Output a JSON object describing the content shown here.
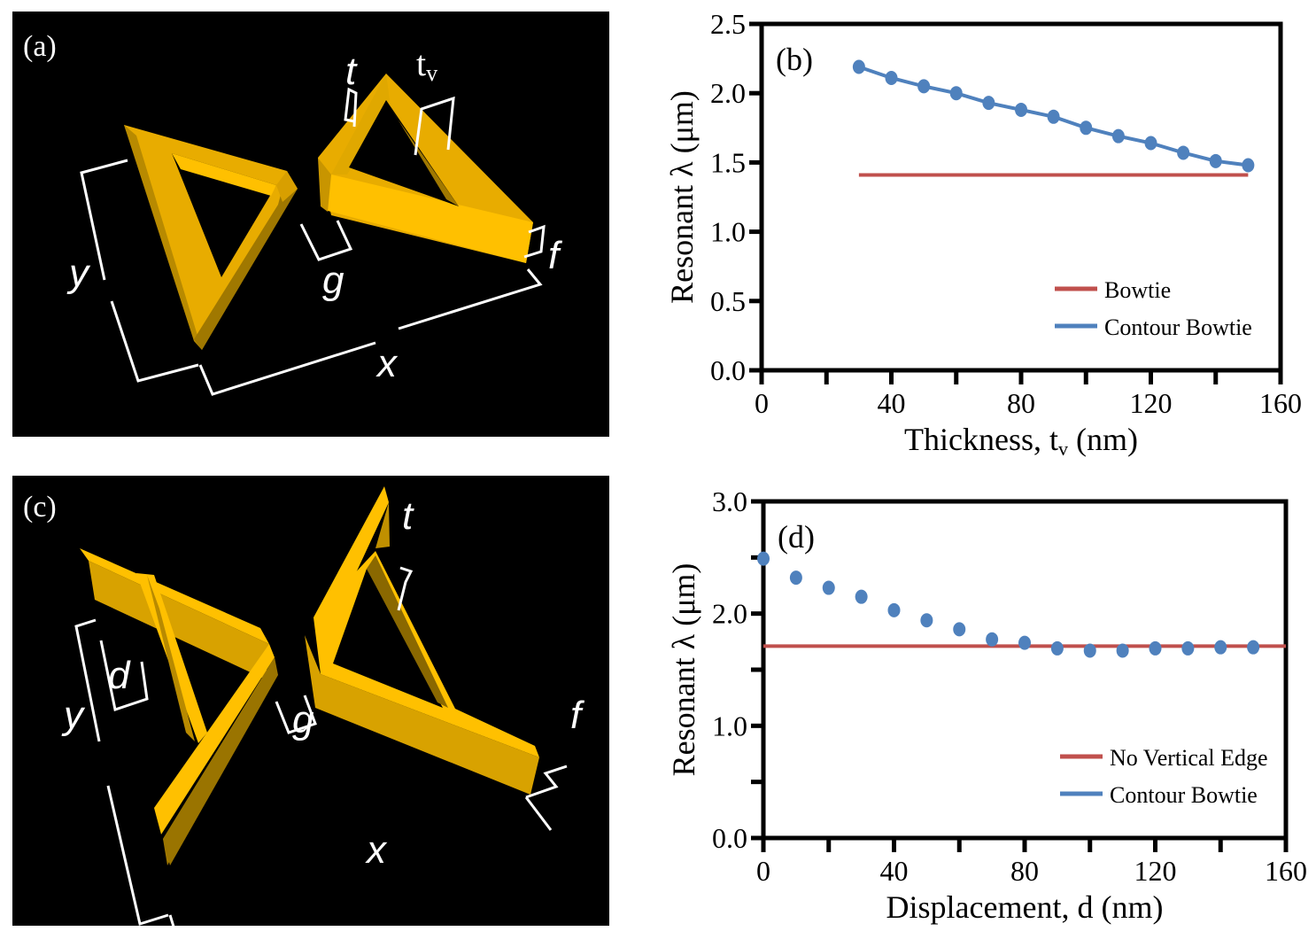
{
  "colors": {
    "red_series": "#C0504D",
    "blue_series": "#4F81BD",
    "gold_light": "#FFC000",
    "gold_mid": "#E0A800",
    "gold_dark": "#A07800"
  },
  "panel_a": {
    "label": "(a)",
    "dimension_labels": {
      "t": "t",
      "tv_main": "t",
      "tv_sub": "v",
      "x": "x",
      "y": "y",
      "g": "g",
      "f": "f"
    }
  },
  "panel_c": {
    "label": "(c)",
    "dimension_labels": {
      "t": "t",
      "x": "x",
      "y": "y",
      "g": "g",
      "f": "f",
      "d": "d"
    }
  },
  "chart_data": [
    {
      "type": "line",
      "panel_label": "(b)",
      "title": "",
      "xlabel": "Thickness, t",
      "xlabel_sub": "v",
      "xlabel_unit": "(nm)",
      "ylabel": "Resonant λ (μm)",
      "xlim": [
        0,
        160
      ],
      "ylim": [
        0,
        2.5
      ],
      "x_ticks": [
        0,
        40,
        80,
        120,
        160
      ],
      "x_tick_labels": [
        "0",
        "40",
        "80",
        "120",
        "160"
      ],
      "x_minor_ticks": [
        20,
        60,
        100,
        140
      ],
      "y_ticks": [
        0,
        0.5,
        1.0,
        1.5,
        2.0,
        2.5
      ],
      "y_tick_labels": [
        "0.0",
        "0.5",
        "1.0",
        "1.5",
        "2.0",
        "2.5"
      ],
      "grid": false,
      "legend_position": "bottom-right",
      "series": [
        {
          "name": "Bowtie",
          "color": "#C0504D",
          "style": "line",
          "x": [
            30,
            150
          ],
          "y": [
            1.41,
            1.41
          ]
        },
        {
          "name": "Contour Bowtie",
          "color": "#4F81BD",
          "style": "line-markers",
          "x": [
            30,
            40,
            50,
            60,
            70,
            80,
            90,
            100,
            110,
            120,
            130,
            140,
            150
          ],
          "y": [
            2.19,
            2.11,
            2.05,
            2.0,
            1.93,
            1.88,
            1.83,
            1.75,
            1.69,
            1.64,
            1.57,
            1.51,
            1.48
          ]
        }
      ]
    },
    {
      "type": "scatter",
      "panel_label": "(d)",
      "title": "",
      "xlabel": "Displacement, d (nm)",
      "ylabel": "Resonant λ (μm)",
      "xlim": [
        0,
        160
      ],
      "ylim": [
        0,
        3.0
      ],
      "x_ticks": [
        0,
        40,
        80,
        120,
        160
      ],
      "x_tick_labels": [
        "0",
        "40",
        "80",
        "120",
        "160"
      ],
      "x_minor_ticks": [
        20,
        60,
        100,
        140
      ],
      "y_ticks": [
        0,
        1.0,
        2.0,
        3.0
      ],
      "y_tick_labels": [
        "0.0",
        "1.0",
        "2.0",
        "3.0"
      ],
      "y_minor_ticks": [
        0.5,
        1.5,
        2.5
      ],
      "grid": false,
      "legend_position": "bottom-right",
      "series": [
        {
          "name": "No Vertical Edge",
          "color": "#C0504D",
          "style": "line",
          "x": [
            0,
            160
          ],
          "y": [
            1.71,
            1.71
          ]
        },
        {
          "name": "Contour Bowtie",
          "color": "#4F81BD",
          "style": "markers",
          "x": [
            0,
            10,
            20,
            30,
            40,
            50,
            60,
            70,
            80,
            90,
            100,
            110,
            120,
            130,
            140,
            150
          ],
          "y": [
            2.49,
            2.32,
            2.23,
            2.15,
            2.03,
            1.94,
            1.86,
            1.77,
            1.74,
            1.69,
            1.67,
            1.67,
            1.69,
            1.69,
            1.7,
            1.7
          ]
        }
      ]
    }
  ]
}
